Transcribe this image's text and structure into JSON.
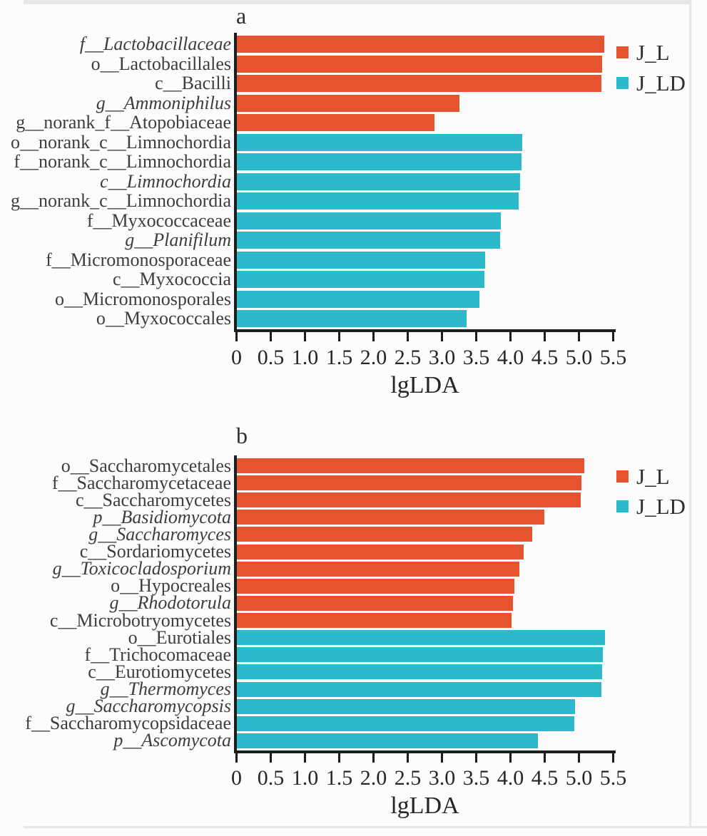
{
  "colors": {
    "J_L": "#E5532F",
    "J_LD": "#2DB8CB",
    "axis": "#1d1d1d",
    "label_text": "#3d3d3d"
  },
  "chart_data": [
    {
      "type": "bar",
      "panel_label": "a",
      "xlabel": "lgLDA",
      "ylabel": "",
      "xlim": [
        0,
        5.5
      ],
      "xticks": [
        "0",
        "0.5",
        "1.0",
        "1.5",
        "2.0",
        "2.5",
        "3.0",
        "3.5",
        "4.0",
        "4.5",
        "5.0",
        "5.5"
      ],
      "grid": false,
      "legend_position": "top-right",
      "legend": [
        {
          "label": "J_L",
          "color": "#E5532F"
        },
        {
          "label": "J_LD",
          "color": "#2DB8CB"
        }
      ],
      "bars": [
        {
          "label": "f__Lactobacillaceae",
          "value": 5.38,
          "group": "J_L",
          "italic": true
        },
        {
          "label": "o__Lactobacillales",
          "value": 5.34,
          "group": "J_L",
          "italic": false
        },
        {
          "label": "c__Bacilli",
          "value": 5.33,
          "group": "J_L",
          "italic": false
        },
        {
          "label": "g__Ammoniphilus",
          "value": 3.26,
          "group": "J_L",
          "italic": true
        },
        {
          "label": "g__norank_f__Atopobiaceae",
          "value": 2.9,
          "group": "J_L",
          "italic": false
        },
        {
          "label": "o__norank_c__Limnochordia",
          "value": 4.18,
          "group": "J_LD",
          "italic": false
        },
        {
          "label": "f__norank_c__Limnochordia",
          "value": 4.17,
          "group": "J_LD",
          "italic": false
        },
        {
          "label": "c__Limnochordia",
          "value": 4.15,
          "group": "J_LD",
          "italic": true
        },
        {
          "label": "g__norank_c__Limnochordia",
          "value": 4.13,
          "group": "J_LD",
          "italic": false
        },
        {
          "label": "f__Myxococcaceae",
          "value": 3.86,
          "group": "J_LD",
          "italic": false
        },
        {
          "label": "g__Planifilum",
          "value": 3.85,
          "group": "J_LD",
          "italic": true
        },
        {
          "label": "f__Micromonosporaceae",
          "value": 3.64,
          "group": "J_LD",
          "italic": false
        },
        {
          "label": "c__Myxococcia",
          "value": 3.63,
          "group": "J_LD",
          "italic": false
        },
        {
          "label": "o__Micromonosporales",
          "value": 3.55,
          "group": "J_LD",
          "italic": false
        },
        {
          "label": "o__Myxococcales",
          "value": 3.36,
          "group": "J_LD",
          "italic": false
        }
      ]
    },
    {
      "type": "bar",
      "panel_label": "b",
      "xlabel": "lgLDA",
      "ylabel": "",
      "xlim": [
        0,
        5.5
      ],
      "xticks": [
        "0",
        "0.5",
        "1.0",
        "1.5",
        "2.0",
        "2.5",
        "3.0",
        "3.5",
        "4.0",
        "4.5",
        "5.0",
        "5.5"
      ],
      "grid": false,
      "legend_position": "top-right",
      "legend": [
        {
          "label": "J_L",
          "color": "#E5532F"
        },
        {
          "label": "J_LD",
          "color": "#2DB8CB"
        }
      ],
      "bars": [
        {
          "label": "o__Saccharomycetales",
          "value": 5.08,
          "group": "J_L",
          "italic": false
        },
        {
          "label": "f__Saccharomycetaceae",
          "value": 5.04,
          "group": "J_L",
          "italic": false
        },
        {
          "label": "c__Saccharomycetes",
          "value": 5.03,
          "group": "J_L",
          "italic": false
        },
        {
          "label": "p__Basidiomycota",
          "value": 4.5,
          "group": "J_L",
          "italic": true
        },
        {
          "label": "g__Saccharomyces",
          "value": 4.32,
          "group": "J_L",
          "italic": true
        },
        {
          "label": "c__Sordariomycetes",
          "value": 4.2,
          "group": "J_L",
          "italic": false
        },
        {
          "label": "g__Toxicocladosporium",
          "value": 4.14,
          "group": "J_L",
          "italic": true
        },
        {
          "label": "o__Hypocreales",
          "value": 4.06,
          "group": "J_L",
          "italic": false
        },
        {
          "label": "g__Rhodotorula",
          "value": 4.04,
          "group": "J_L",
          "italic": true
        },
        {
          "label": "c__Microbotryomycetes",
          "value": 4.02,
          "group": "J_L",
          "italic": false
        },
        {
          "label": "o__Eurotiales",
          "value": 5.39,
          "group": "J_LD",
          "italic": false
        },
        {
          "label": "f__Trichocomaceae",
          "value": 5.35,
          "group": "J_LD",
          "italic": false
        },
        {
          "label": "c__Eurotiomycetes",
          "value": 5.34,
          "group": "J_LD",
          "italic": false
        },
        {
          "label": "g__Thermomyces",
          "value": 5.33,
          "group": "J_LD",
          "italic": true
        },
        {
          "label": "g__Saccharomycopsis",
          "value": 4.95,
          "group": "J_LD",
          "italic": true
        },
        {
          "label": "f__Saccharomycopsidaceae",
          "value": 4.94,
          "group": "J_LD",
          "italic": false
        },
        {
          "label": "p__Ascomycota",
          "value": 4.41,
          "group": "J_LD",
          "italic": true
        }
      ]
    }
  ]
}
